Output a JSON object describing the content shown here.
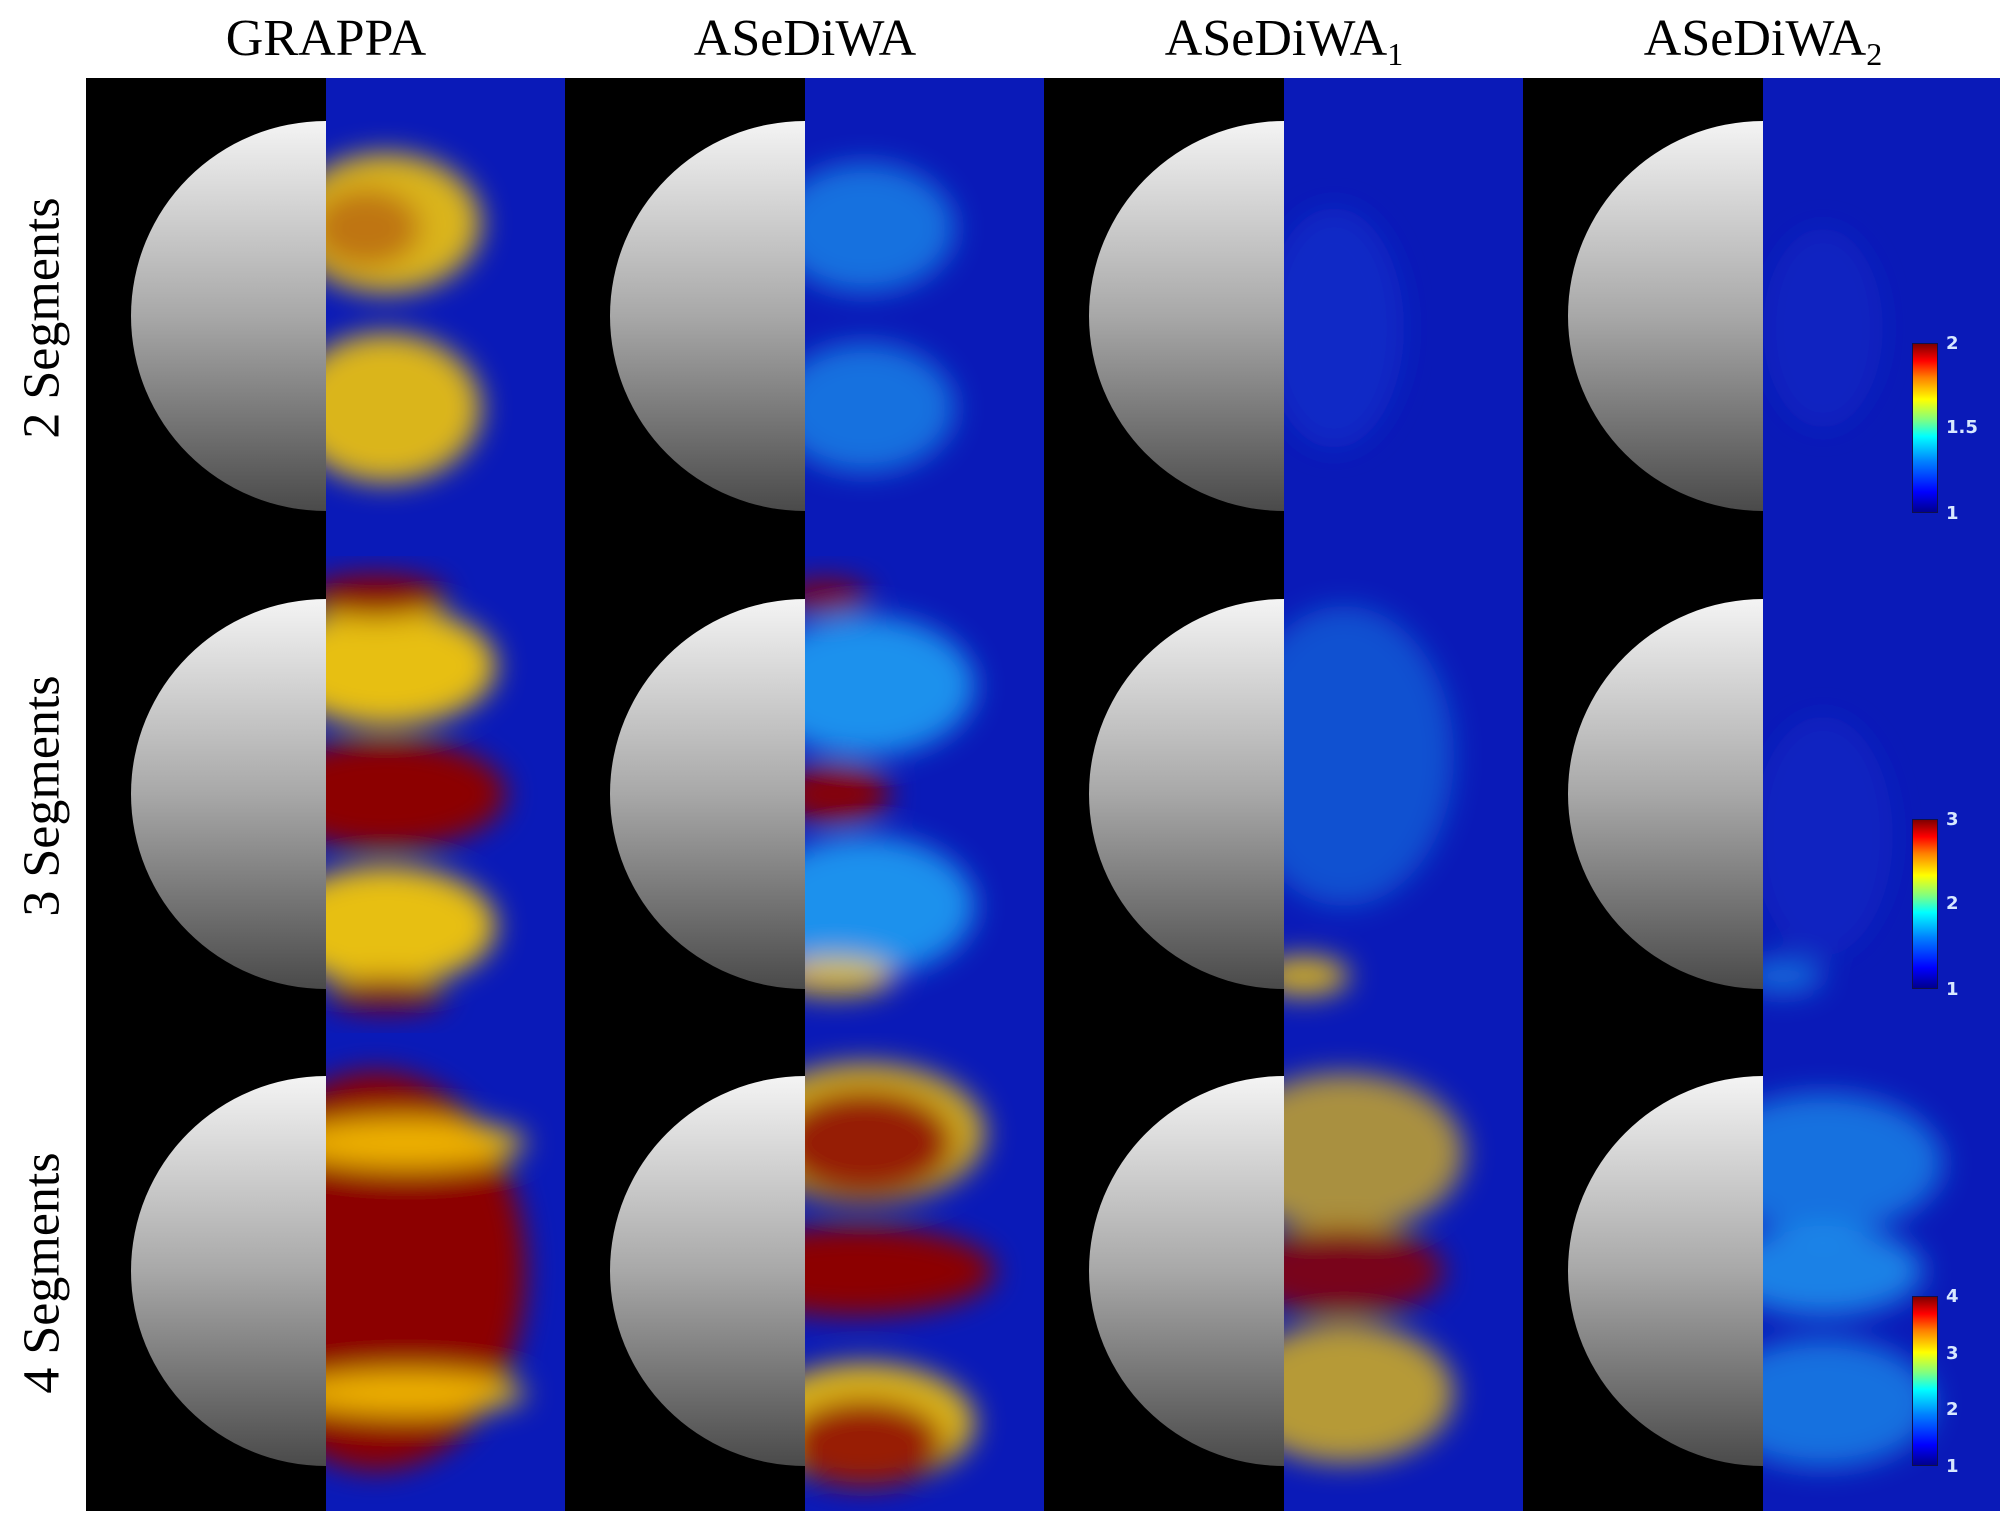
{
  "columns": [
    {
      "base": "GRAPPA",
      "sub": ""
    },
    {
      "base": "ASeDiWA",
      "sub": ""
    },
    {
      "base": "ASeDiWA",
      "sub": "1"
    },
    {
      "base": "ASeDiWA",
      "sub": "2"
    }
  ],
  "rows": [
    {
      "label": "2 Segments",
      "colorbar_ticks": [
        "2",
        "1.5",
        "1"
      ]
    },
    {
      "label": "3 Segments",
      "colorbar_ticks": [
        "3",
        "2",
        "1"
      ]
    },
    {
      "label": "4 Segments",
      "colorbar_ticks": [
        "4",
        "3",
        "2",
        "1"
      ]
    }
  ],
  "colors": {
    "map_background": "#0a1ab8",
    "low": "#1438d6",
    "mid": "#22b8ff",
    "high": "#ffd000",
    "saturated": "#8c0000"
  }
}
